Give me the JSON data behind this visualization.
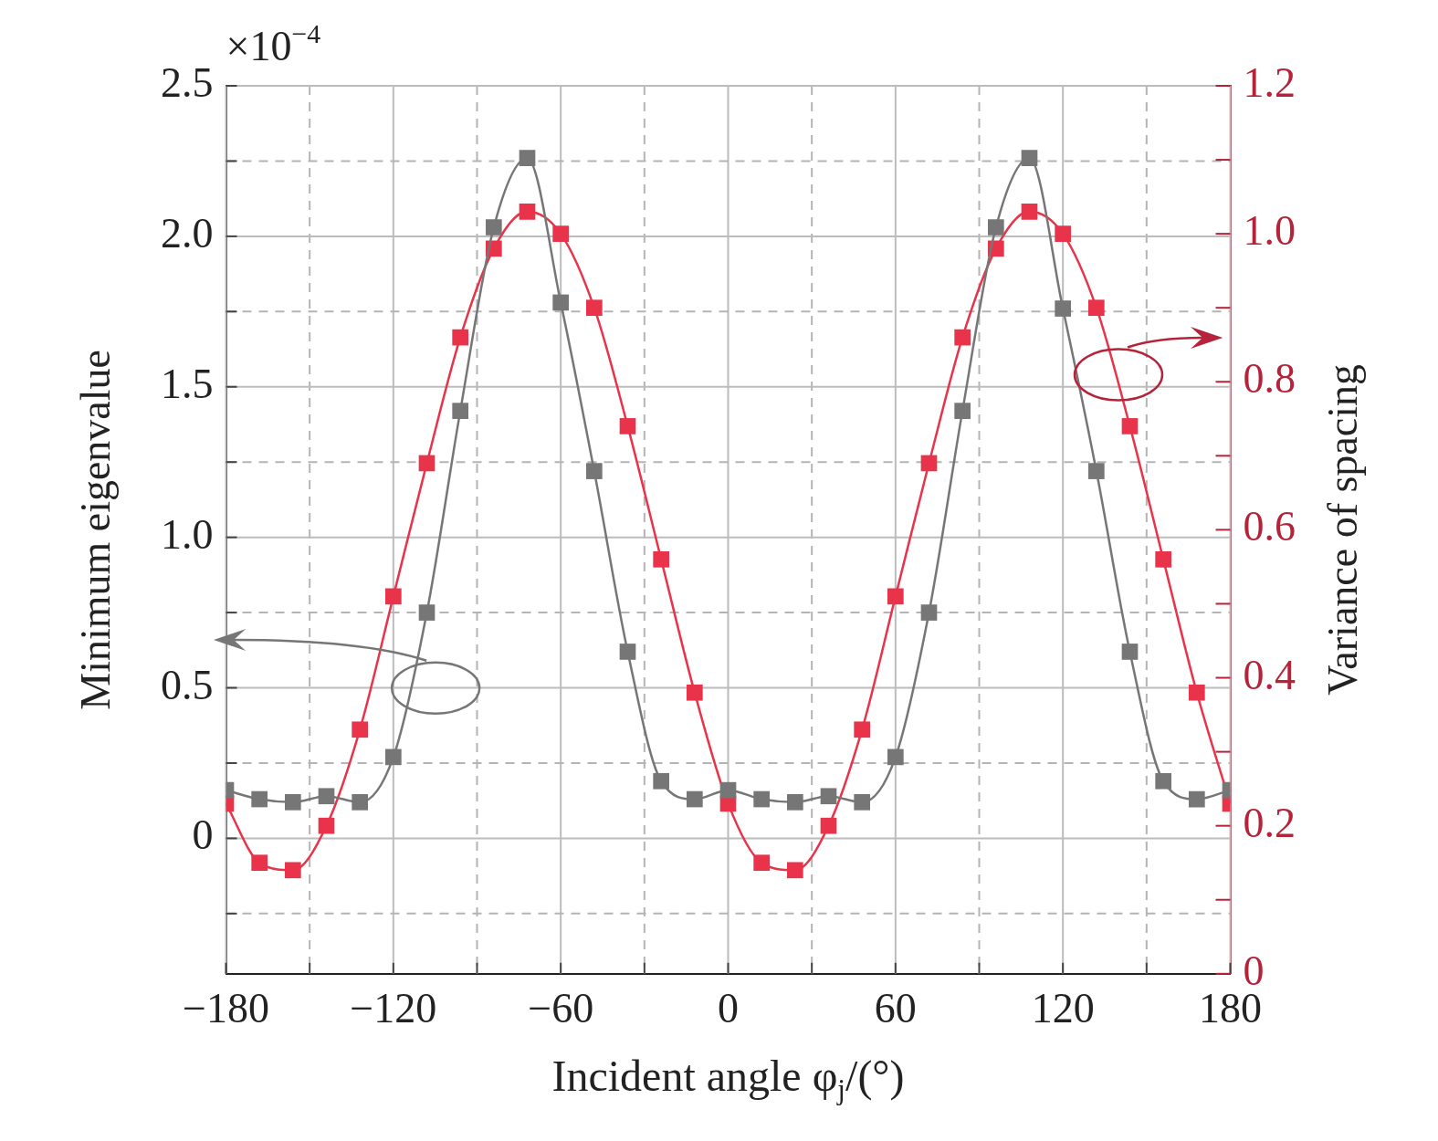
{
  "chart_data": {
    "type": "line",
    "xlabel": "Incident angle φ$_{j}$/(°)",
    "ylabel": "Minimum eigenvalue",
    "y2label": "Variance of spacing",
    "annotations": [
      "×10$^{−4}$"
    ],
    "x": [
      -180,
      -168,
      -156,
      -144,
      -132,
      -120,
      -108,
      -96,
      -84,
      -72,
      -60,
      -48,
      -36,
      -24,
      -12,
      0,
      12,
      24,
      36,
      48,
      60,
      72,
      84,
      96,
      108,
      120,
      132,
      144,
      156,
      168,
      180
    ],
    "series": [
      {
        "color": "#767676",
        "values": [
          0.16,
          0.13,
          0.12,
          0.14,
          0.12,
          0.27,
          0.75,
          1.42,
          2.03,
          2.26,
          1.78,
          1.22,
          0.62,
          0.19,
          0.13,
          0.16,
          0.13,
          0.12,
          0.14,
          0.12,
          0.27,
          0.75,
          1.42,
          2.03,
          2.26,
          1.76,
          1.22,
          0.62,
          0.19,
          0.13,
          0.16
        ]
      },
      {
        "color": "#e8334a",
        "axis": "y2",
        "values": [
          0.23,
          0.15,
          0.14,
          0.2,
          0.33,
          0.51,
          0.69,
          0.86,
          0.98,
          1.03,
          1.0,
          0.9,
          0.74,
          0.56,
          0.38,
          0.23,
          0.15,
          0.14,
          0.2,
          0.33,
          0.51,
          0.69,
          0.86,
          0.98,
          1.03,
          1.0,
          0.9,
          0.74,
          0.56,
          0.38,
          0.23
        ]
      }
    ],
    "xlim": [
      -180,
      180
    ],
    "xticks": [
      {
        "value": -180,
        "label": "−180"
      },
      {
        "value": -150,
        "label": null
      },
      {
        "value": -120,
        "label": "−120"
      },
      {
        "value": -90,
        "label": null
      },
      {
        "value": -60,
        "label": "−60"
      },
      {
        "value": -30,
        "label": null
      },
      0,
      {
        "value": 30,
        "label": null
      },
      60,
      {
        "value": 90,
        "label": null
      },
      120,
      {
        "value": 150,
        "label": null
      },
      180
    ],
    "ylim": [
      -0.45,
      2.5
    ],
    "yticks": [
      {
        "value": -0.25,
        "label": null
      },
      0,
      {
        "value": 0.25,
        "label": null
      },
      0.5,
      {
        "value": 0.75,
        "label": null
      },
      {
        "value": 1,
        "label": "1.0"
      },
      {
        "value": 1.25,
        "label": null
      },
      1.5,
      {
        "value": 1.75,
        "label": null
      },
      {
        "value": 2,
        "label": "2.0"
      },
      {
        "value": 2.25,
        "label": null
      },
      2.5
    ],
    "y2lim": [
      0,
      1.2
    ],
    "y2ticks": [
      0,
      {
        "value": 0.1,
        "label": null
      },
      0.2,
      {
        "value": 0.3,
        "label": null
      },
      0.4,
      {
        "value": 0.5,
        "label": null
      },
      0.6,
      {
        "value": 0.7,
        "label": null
      },
      0.8,
      {
        "value": 0.9,
        "label": null
      },
      {
        "value": 1,
        "label": "1.0"
      },
      {
        "value": 1.1,
        "label": null
      },
      1.2
    ],
    "grid": true,
    "marker": "square",
    "line_style": "solid",
    "legend": false
  }
}
